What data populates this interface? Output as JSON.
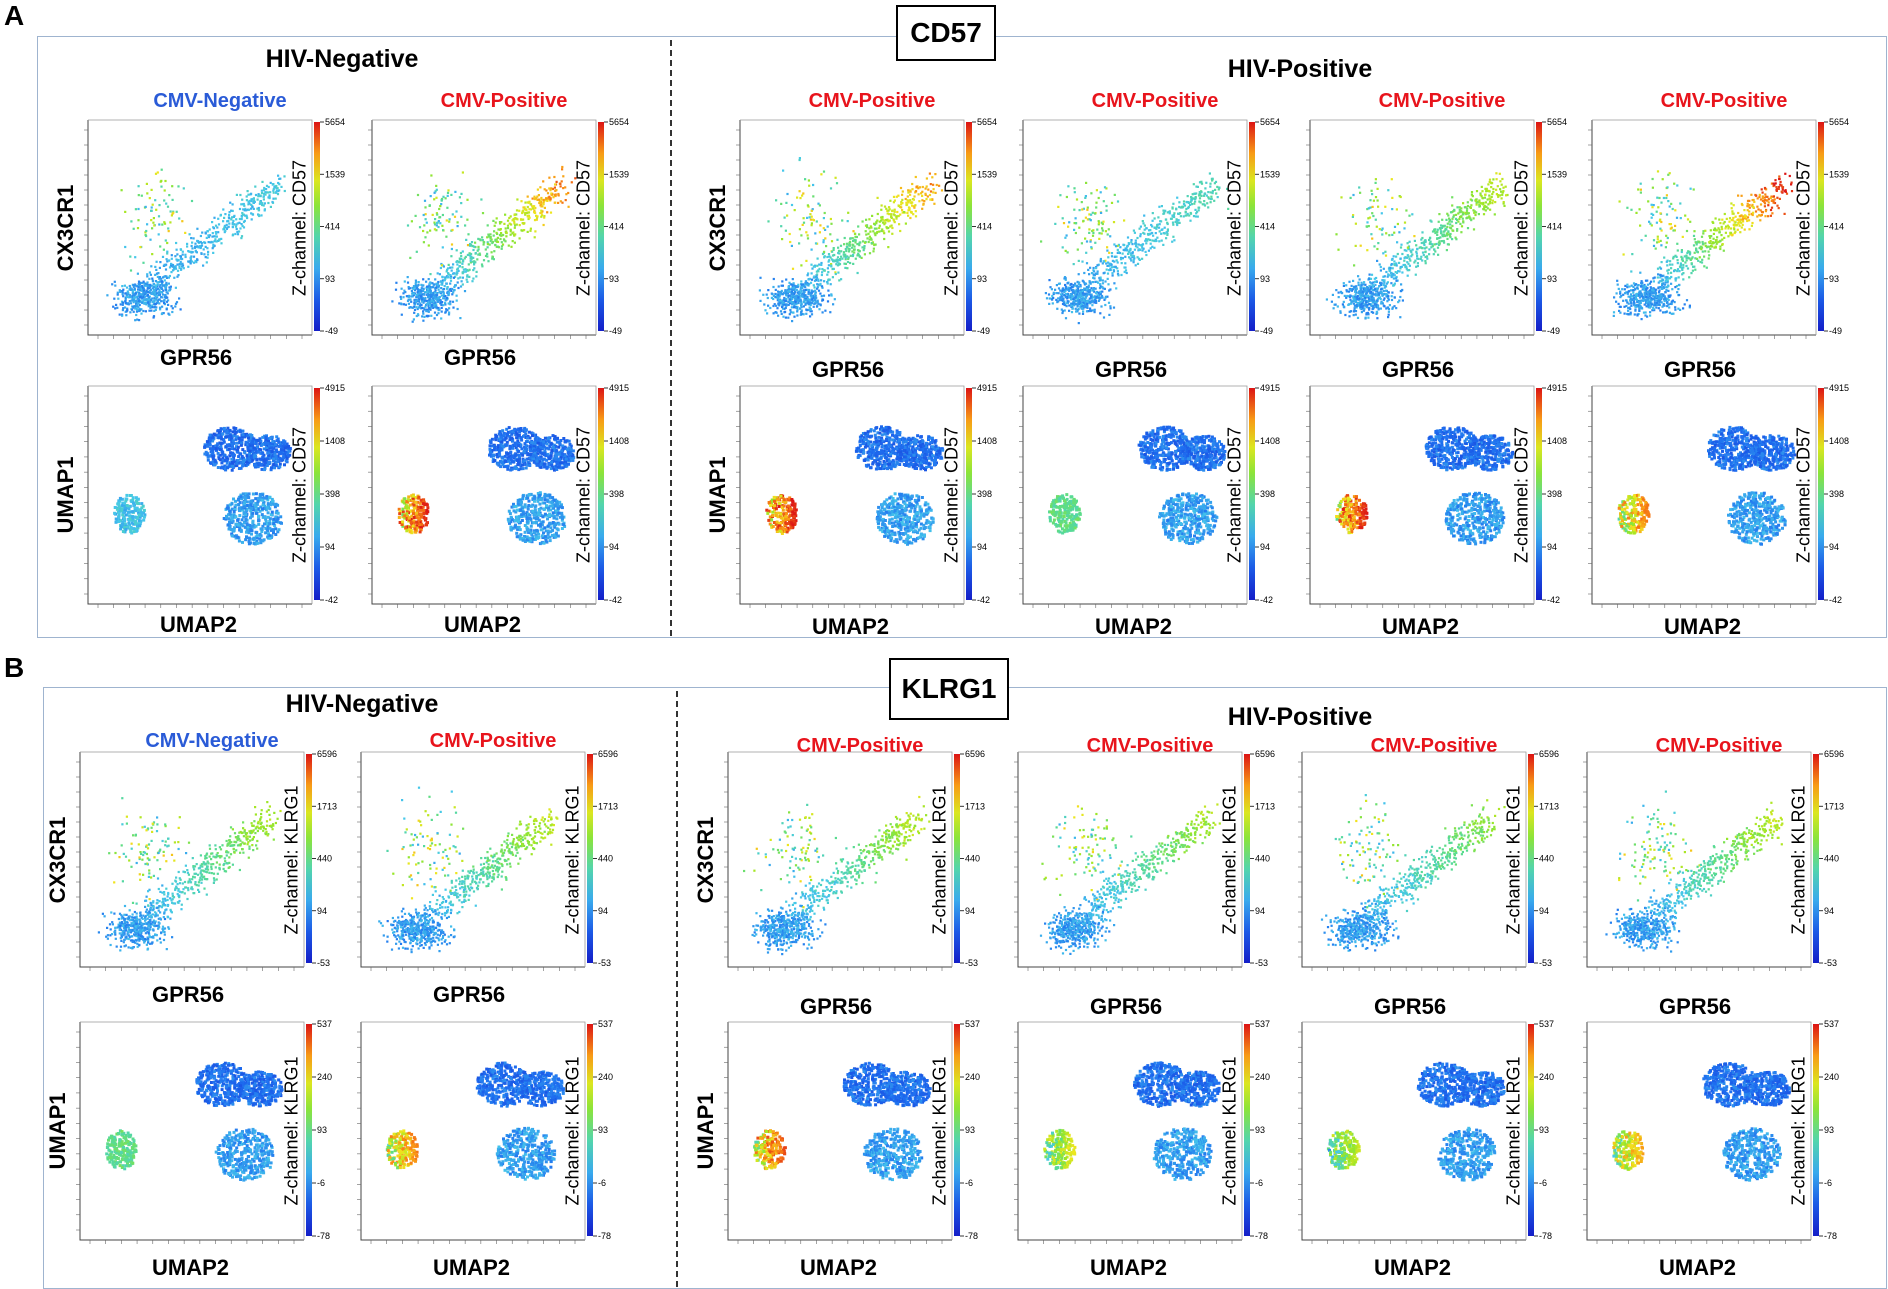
{
  "figure": {
    "panel_a": {
      "letter": "A",
      "title": "CD57",
      "hiv_negative_label": "HIV-Negative",
      "hiv_positive_label": "HIV-Positive",
      "z_label": "Z-channel: CD57",
      "scatter_ticks": [
        "5654",
        "1539",
        "414",
        "93",
        "-49"
      ],
      "umap_ticks": [
        "4915",
        "1408",
        "398",
        "94",
        "-42"
      ],
      "columns": [
        {
          "cmv": "CMV-Negative",
          "cmv_color": "#2a5bd7",
          "scatter_high": 0.1,
          "umap_island": 0.35
        },
        {
          "cmv": "CMV-Positive",
          "cmv_color": "#e8141c",
          "scatter_high": 0.85,
          "umap_island": 1.0
        },
        {
          "cmv": "CMV-Positive",
          "cmv_color": "#e8141c",
          "scatter_high": 0.8,
          "umap_island": 1.0
        },
        {
          "cmv": "CMV-Positive",
          "cmv_color": "#e8141c",
          "scatter_high": 0.2,
          "umap_island": 0.5
        },
        {
          "cmv": "CMV-Positive",
          "cmv_color": "#e8141c",
          "scatter_high": 0.55,
          "umap_island": 1.0
        },
        {
          "cmv": "CMV-Positive",
          "cmv_color": "#e8141c",
          "scatter_high": 1.0,
          "umap_island": 0.9
        }
      ]
    },
    "panel_b": {
      "letter": "B",
      "title": "KLRG1",
      "hiv_negative_label": "HIV-Negative",
      "hiv_positive_label": "HIV-Positive",
      "z_label": "Z-channel: KLRG1",
      "scatter_ticks": [
        "6596",
        "1713",
        "440",
        "94",
        "-53"
      ],
      "umap_ticks": [
        "537",
        "240",
        "93",
        "-6",
        "-78"
      ],
      "columns": [
        {
          "cmv": "CMV-Negative",
          "cmv_color": "#2a5bd7",
          "scatter_high": 0.5,
          "umap_island": 0.5
        },
        {
          "cmv": "CMV-Positive",
          "cmv_color": "#e8141c",
          "scatter_high": 0.55,
          "umap_island": 0.9
        },
        {
          "cmv": "CMV-Positive",
          "cmv_color": "#e8141c",
          "scatter_high": 0.55,
          "umap_island": 0.95
        },
        {
          "cmv": "CMV-Positive",
          "cmv_color": "#e8141c",
          "scatter_high": 0.5,
          "umap_island": 0.75
        },
        {
          "cmv": "CMV-Positive",
          "cmv_color": "#e8141c",
          "scatter_high": 0.45,
          "umap_island": 0.7
        },
        {
          "cmv": "CMV-Positive",
          "cmv_color": "#e8141c",
          "scatter_high": 0.55,
          "umap_island": 0.85
        }
      ]
    },
    "axis_labels": {
      "scatter_x": "GPR56",
      "scatter_y": "CX3CR1",
      "umap_x": "UMAP2",
      "umap_y": "UMAP1"
    }
  }
}
